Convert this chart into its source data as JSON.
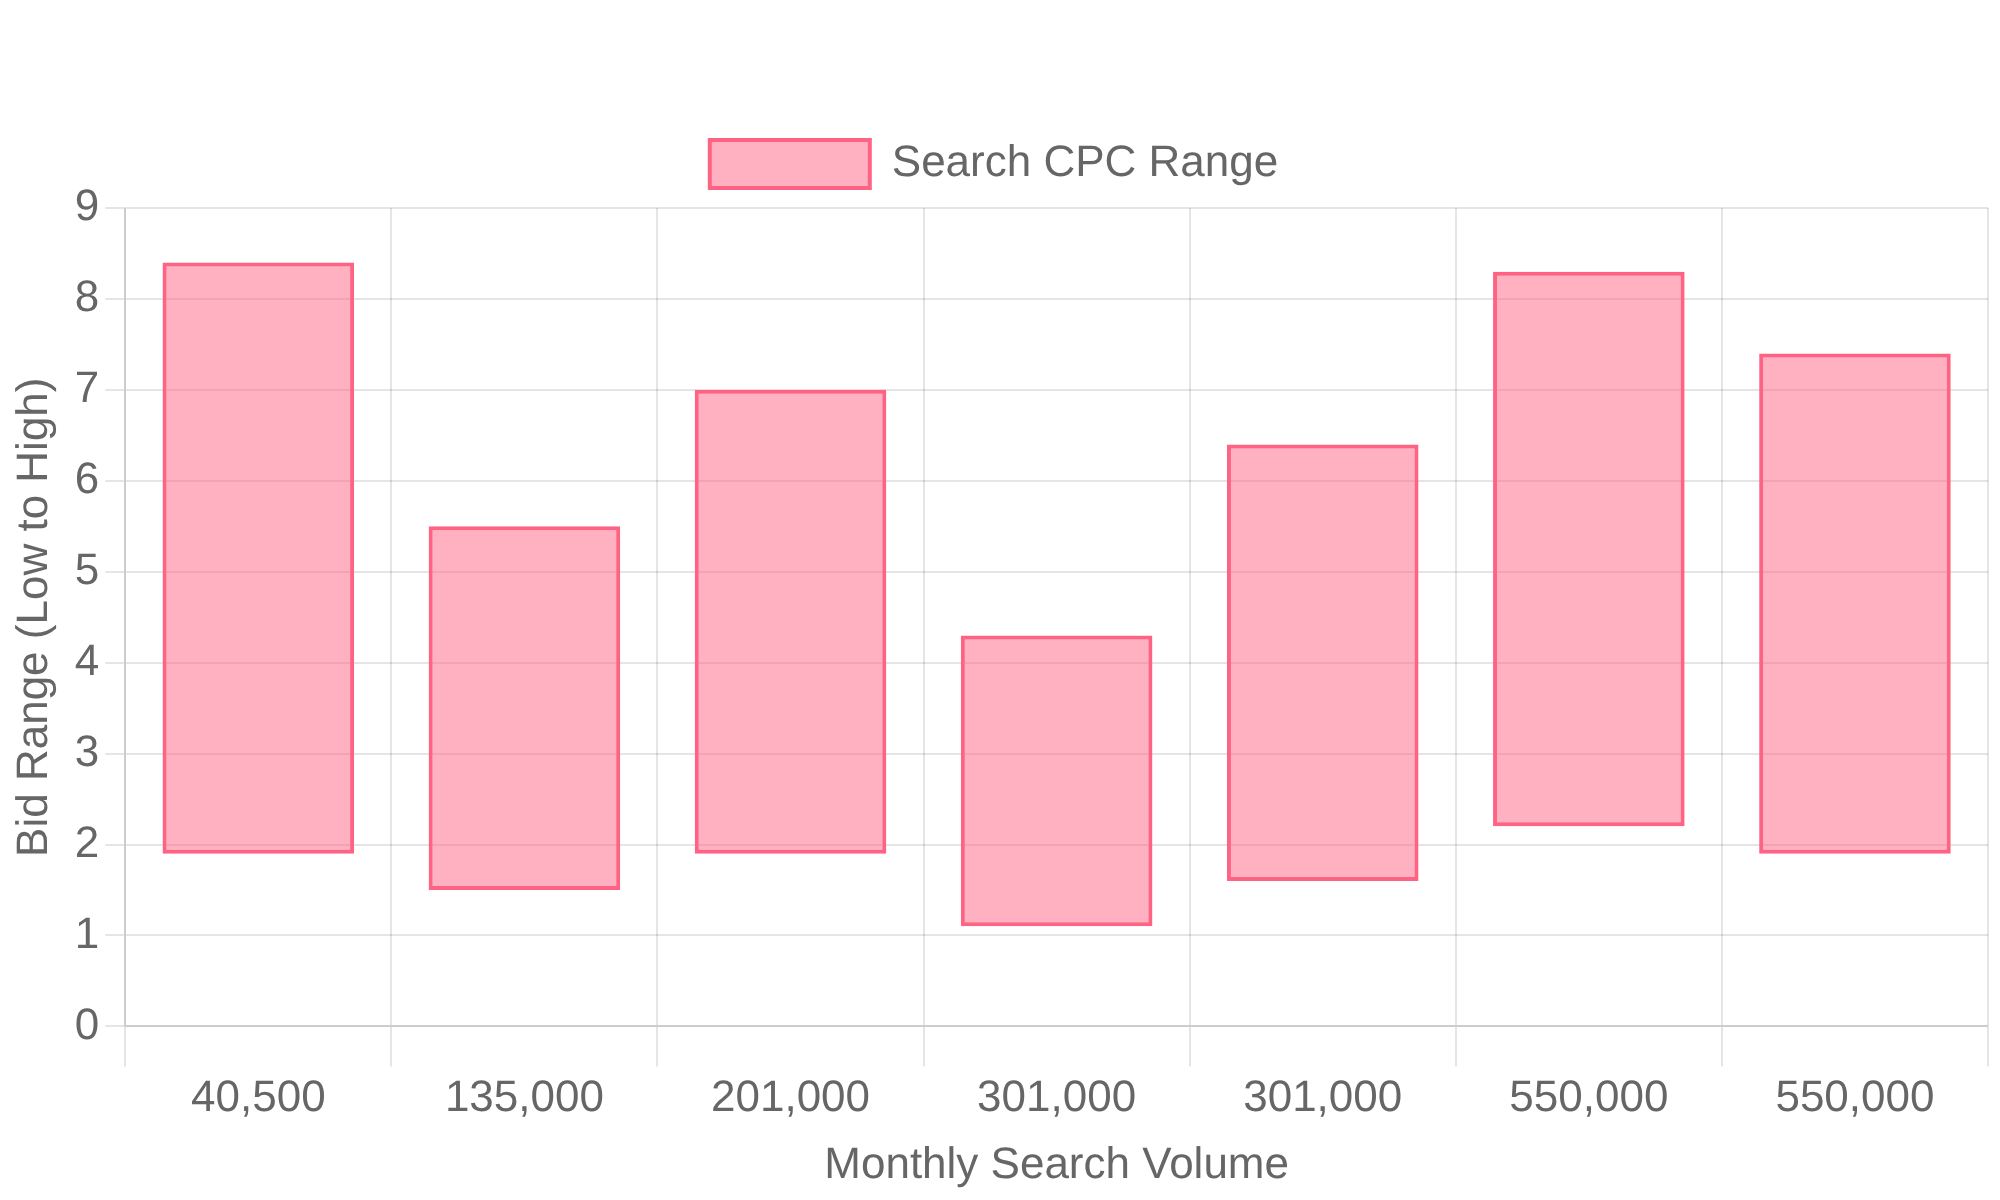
{
  "chart_data": {
    "type": "bar",
    "xlabel": "Monthly Search Volume",
    "ylabel": "Bid Range (Low to High)",
    "categories": [
      "40,500",
      "135,000",
      "201,000",
      "301,000",
      "301,000",
      "550,000",
      "550,000"
    ],
    "series": [
      {
        "name": "Search CPC Range",
        "color": "#ff6384",
        "values": [
          6.5,
          4.0,
          5.1,
          3.2,
          4.8,
          6.1,
          5.5
        ],
        "base": [
          1.9,
          1.5,
          1.9,
          1.1,
          1.6,
          2.2,
          1.9
        ]
      }
    ],
    "ylim": [
      0,
      9
    ],
    "yticks": [
      0,
      1,
      2,
      3,
      4,
      5,
      6,
      7,
      8,
      9
    ],
    "grid": true,
    "legend": "top"
  }
}
